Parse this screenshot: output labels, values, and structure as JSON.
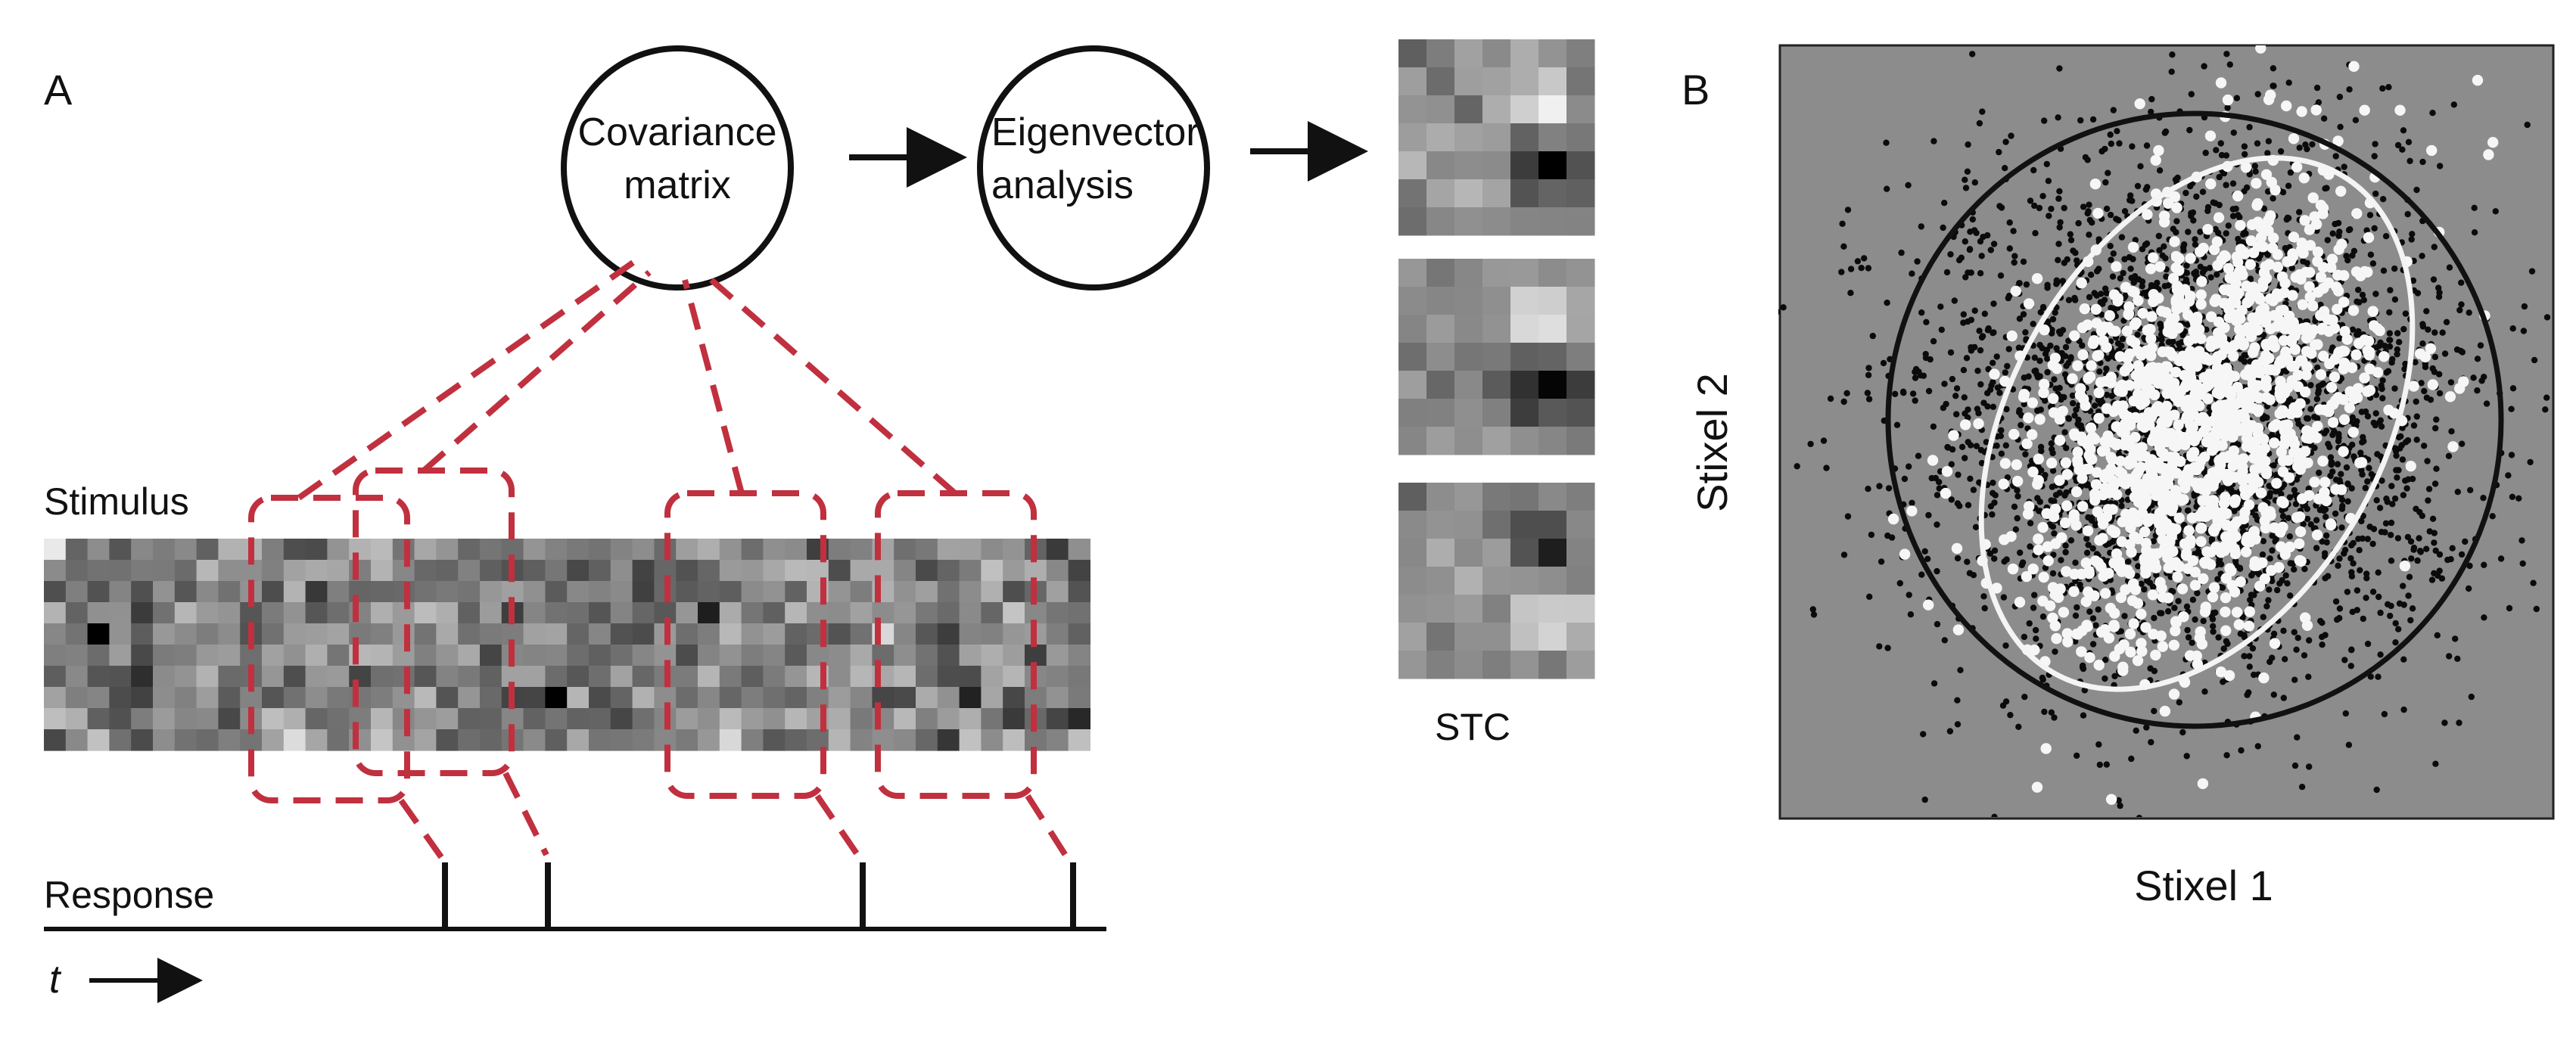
{
  "panels": {
    "a": {
      "letter": "A",
      "nodes": {
        "covariance": {
          "line1": "Covariance",
          "line2": "matrix"
        },
        "eigen": {
          "line1": "Eigenvector",
          "line2": "analysis"
        }
      },
      "stimulus_label": "Stimulus",
      "response_label": "Response",
      "time_label": "t",
      "stc_label": "STC",
      "spike_count": 4
    },
    "b": {
      "letter": "B",
      "xlabel": "Stixel 1",
      "ylabel": "Stixel 2",
      "plot_background": "grey",
      "raw_point_color": "black",
      "spike_point_color": "white",
      "raw_ellipse": "circle, black",
      "spike_ellipse": "tilted ellipse, white"
    }
  },
  "colors": {
    "dashed_links": "#c0303f",
    "text": "#111111",
    "plot_bg": "#8c8c8c"
  }
}
